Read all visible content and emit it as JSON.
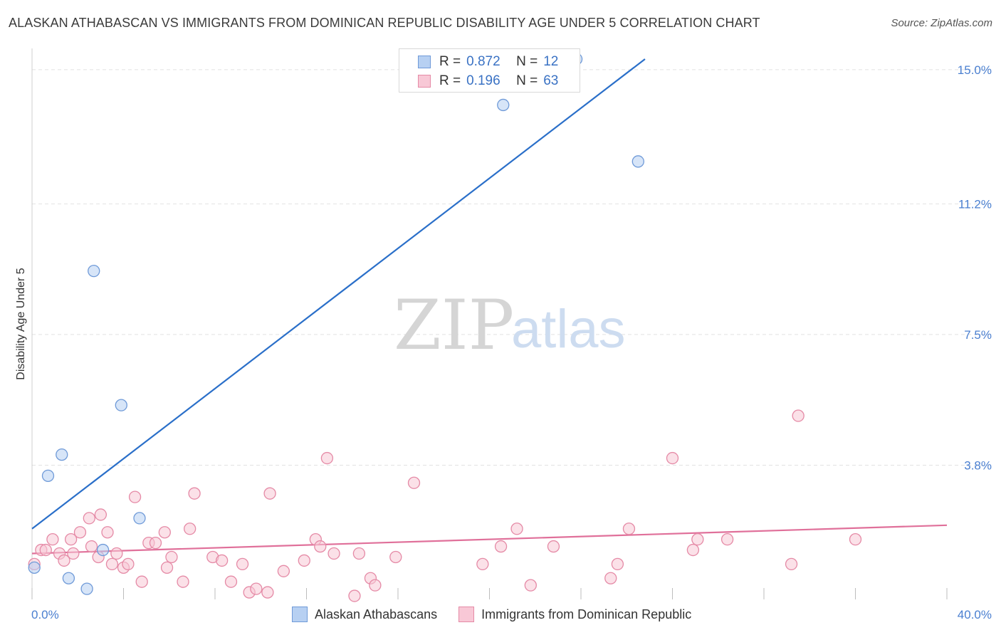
{
  "header": {
    "title": "ALASKAN ATHABASCAN VS IMMIGRANTS FROM DOMINICAN REPUBLIC DISABILITY AGE UNDER 5 CORRELATION CHART",
    "source": "Source: ZipAtlas.com"
  },
  "watermark": {
    "zip": "ZIP",
    "atlas": "atlas"
  },
  "legend": {
    "series1": {
      "r_label": "R =",
      "r_value": "0.872",
      "n_label": "N =",
      "n_value": "12"
    },
    "series2": {
      "r_label": "R =",
      "r_value": "0.196",
      "n_label": "N =",
      "n_value": "63"
    }
  },
  "colors": {
    "blue_fill": "#b7d0f2",
    "blue_stroke": "#6f9ad8",
    "blue_line": "#2a6fc9",
    "pink_fill": "#f8c8d6",
    "pink_stroke": "#e58aa6",
    "pink_line": "#e0709a",
    "grid": "#e2e2e2",
    "tick_text": "#4a7fd0"
  },
  "chart_data": {
    "type": "scatter",
    "title": "ALASKAN ATHABASCAN VS IMMIGRANTS FROM DOMINICAN REPUBLIC DISABILITY AGE UNDER 5 CORRELATION CHART",
    "xlabel": "",
    "ylabel": "Disability Age Under 5",
    "xlim": [
      0,
      40
    ],
    "ylim": [
      0,
      15.4
    ],
    "x_tick_labels": [
      "0.0%",
      "40.0%"
    ],
    "y_ticks": [
      3.8,
      7.5,
      11.2,
      15.0
    ],
    "y_tick_labels": [
      "3.8%",
      "7.5%",
      "11.2%",
      "15.0%"
    ],
    "legend_position": "top-center",
    "series": [
      {
        "name": "Alaskan Athabascans",
        "color": "blue",
        "points": [
          [
            0.1,
            0.9
          ],
          [
            0.7,
            3.5
          ],
          [
            1.3,
            4.1
          ],
          [
            1.6,
            0.6
          ],
          [
            2.4,
            0.3
          ],
          [
            2.7,
            9.3
          ],
          [
            3.1,
            1.4
          ],
          [
            3.9,
            5.5
          ],
          [
            4.7,
            2.3
          ],
          [
            20.6,
            14.0
          ],
          [
            23.8,
            15.3
          ],
          [
            26.5,
            12.4
          ]
        ],
        "trend": {
          "x1": 0,
          "y1": 2.0,
          "x2": 26.8,
          "y2": 15.3
        }
      },
      {
        "name": "Immigrants from Dominican Republic",
        "color": "pink",
        "points": [
          [
            0.1,
            1.0
          ],
          [
            0.4,
            1.4
          ],
          [
            0.6,
            1.4
          ],
          [
            0.9,
            1.7
          ],
          [
            1.2,
            1.3
          ],
          [
            1.4,
            1.1
          ],
          [
            1.7,
            1.7
          ],
          [
            1.8,
            1.3
          ],
          [
            2.1,
            1.9
          ],
          [
            2.5,
            2.3
          ],
          [
            2.6,
            1.5
          ],
          [
            2.9,
            1.2
          ],
          [
            3.0,
            2.4
          ],
          [
            3.3,
            1.9
          ],
          [
            3.5,
            1.0
          ],
          [
            3.7,
            1.3
          ],
          [
            4.0,
            0.9
          ],
          [
            4.2,
            1.0
          ],
          [
            4.5,
            2.9
          ],
          [
            4.8,
            0.5
          ],
          [
            5.1,
            1.6
          ],
          [
            5.4,
            1.6
          ],
          [
            5.8,
            1.9
          ],
          [
            5.9,
            0.9
          ],
          [
            6.1,
            1.2
          ],
          [
            6.6,
            0.5
          ],
          [
            6.9,
            2.0
          ],
          [
            7.1,
            3.0
          ],
          [
            7.9,
            1.2
          ],
          [
            8.3,
            1.1
          ],
          [
            8.7,
            0.5
          ],
          [
            9.2,
            1.0
          ],
          [
            9.5,
            0.2
          ],
          [
            9.8,
            0.3
          ],
          [
            10.3,
            0.2
          ],
          [
            10.4,
            3.0
          ],
          [
            11.0,
            0.8
          ],
          [
            11.9,
            1.1
          ],
          [
            12.4,
            1.7
          ],
          [
            12.6,
            1.5
          ],
          [
            12.9,
            4.0
          ],
          [
            13.2,
            1.3
          ],
          [
            14.1,
            0.1
          ],
          [
            14.3,
            1.3
          ],
          [
            14.8,
            0.6
          ],
          [
            15.0,
            0.4
          ],
          [
            15.9,
            1.2
          ],
          [
            16.7,
            3.3
          ],
          [
            19.7,
            1.0
          ],
          [
            20.5,
            1.5
          ],
          [
            21.2,
            2.0
          ],
          [
            21.8,
            0.4
          ],
          [
            22.8,
            1.5
          ],
          [
            25.3,
            0.6
          ],
          [
            25.6,
            1.0
          ],
          [
            26.1,
            2.0
          ],
          [
            28.0,
            4.0
          ],
          [
            28.9,
            1.4
          ],
          [
            29.1,
            1.7
          ],
          [
            30.4,
            1.7
          ],
          [
            33.2,
            1.0
          ],
          [
            33.5,
            5.2
          ],
          [
            36.0,
            1.7
          ]
        ],
        "trend": {
          "x1": 0,
          "y1": 1.3,
          "x2": 40,
          "y2": 2.1
        }
      }
    ]
  }
}
